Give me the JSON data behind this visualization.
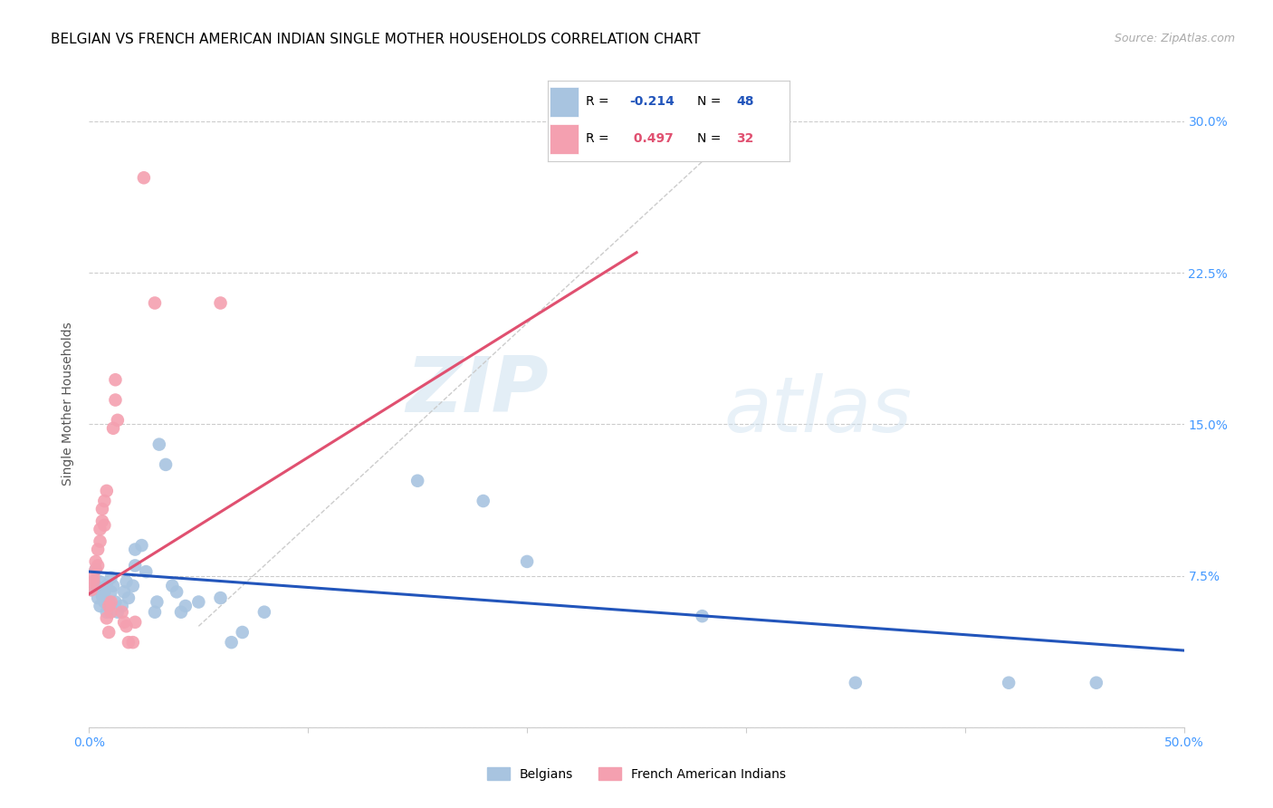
{
  "title": "BELGIAN VS FRENCH AMERICAN INDIAN SINGLE MOTHER HOUSEHOLDS CORRELATION CHART",
  "source": "Source: ZipAtlas.com",
  "ylabel": "Single Mother Households",
  "xlim": [
    0.0,
    0.5
  ],
  "ylim": [
    0.0,
    0.32
  ],
  "xticks": [
    0.0,
    0.1,
    0.2,
    0.3,
    0.4,
    0.5
  ],
  "xticklabels": [
    "0.0%",
    "",
    "",
    "",
    "",
    "50.0%"
  ],
  "yticks": [
    0.0,
    0.075,
    0.15,
    0.225,
    0.3
  ],
  "yticklabels_right": [
    "",
    "7.5%",
    "15.0%",
    "22.5%",
    "30.0%"
  ],
  "watermark_zip": "ZIP",
  "watermark_atlas": "atlas",
  "belgian_color": "#a8c4e0",
  "french_color": "#f4a0b0",
  "belgian_line_color": "#2255bb",
  "french_line_color": "#e05070",
  "diag_line_color": "#cccccc",
  "legend_belgian_r": "-0.214",
  "legend_belgian_n": "48",
  "legend_french_r": "0.497",
  "legend_french_n": "32",
  "blue_line_x0": 0.0,
  "blue_line_y0": 0.077,
  "blue_line_x1": 0.5,
  "blue_line_y1": 0.038,
  "pink_line_x0": 0.0,
  "pink_line_y0": 0.066,
  "pink_line_x1": 0.25,
  "pink_line_y1": 0.235,
  "belgian_points": [
    [
      0.001,
      0.068
    ],
    [
      0.002,
      0.072
    ],
    [
      0.003,
      0.07
    ],
    [
      0.003,
      0.078
    ],
    [
      0.004,
      0.064
    ],
    [
      0.004,
      0.069
    ],
    [
      0.005,
      0.06
    ],
    [
      0.005,
      0.072
    ],
    [
      0.006,
      0.065
    ],
    [
      0.007,
      0.062
    ],
    [
      0.007,
      0.067
    ],
    [
      0.008,
      0.07
    ],
    [
      0.008,
      0.057
    ],
    [
      0.009,
      0.062
    ],
    [
      0.01,
      0.074
    ],
    [
      0.01,
      0.067
    ],
    [
      0.011,
      0.07
    ],
    [
      0.012,
      0.062
    ],
    [
      0.013,
      0.057
    ],
    [
      0.015,
      0.06
    ],
    [
      0.016,
      0.067
    ],
    [
      0.017,
      0.072
    ],
    [
      0.018,
      0.064
    ],
    [
      0.02,
      0.07
    ],
    [
      0.021,
      0.08
    ],
    [
      0.021,
      0.088
    ],
    [
      0.024,
      0.09
    ],
    [
      0.026,
      0.077
    ],
    [
      0.03,
      0.057
    ],
    [
      0.031,
      0.062
    ],
    [
      0.032,
      0.14
    ],
    [
      0.035,
      0.13
    ],
    [
      0.038,
      0.07
    ],
    [
      0.04,
      0.067
    ],
    [
      0.042,
      0.057
    ],
    [
      0.044,
      0.06
    ],
    [
      0.05,
      0.062
    ],
    [
      0.06,
      0.064
    ],
    [
      0.065,
      0.042
    ],
    [
      0.07,
      0.047
    ],
    [
      0.08,
      0.057
    ],
    [
      0.15,
      0.122
    ],
    [
      0.18,
      0.112
    ],
    [
      0.2,
      0.082
    ],
    [
      0.28,
      0.055
    ],
    [
      0.35,
      0.022
    ],
    [
      0.42,
      0.022
    ],
    [
      0.46,
      0.022
    ]
  ],
  "french_points": [
    [
      0.001,
      0.068
    ],
    [
      0.002,
      0.072
    ],
    [
      0.002,
      0.074
    ],
    [
      0.003,
      0.078
    ],
    [
      0.003,
      0.082
    ],
    [
      0.004,
      0.088
    ],
    [
      0.004,
      0.08
    ],
    [
      0.005,
      0.098
    ],
    [
      0.005,
      0.092
    ],
    [
      0.006,
      0.102
    ],
    [
      0.006,
      0.108
    ],
    [
      0.007,
      0.112
    ],
    [
      0.007,
      0.1
    ],
    [
      0.008,
      0.117
    ],
    [
      0.008,
      0.054
    ],
    [
      0.009,
      0.06
    ],
    [
      0.009,
      0.047
    ],
    [
      0.01,
      0.062
    ],
    [
      0.01,
      0.057
    ],
    [
      0.011,
      0.148
    ],
    [
      0.012,
      0.162
    ],
    [
      0.012,
      0.172
    ],
    [
      0.013,
      0.152
    ],
    [
      0.015,
      0.057
    ],
    [
      0.016,
      0.052
    ],
    [
      0.017,
      0.05
    ],
    [
      0.018,
      0.042
    ],
    [
      0.02,
      0.042
    ],
    [
      0.021,
      0.052
    ],
    [
      0.025,
      0.272
    ],
    [
      0.03,
      0.21
    ],
    [
      0.06,
      0.21
    ]
  ],
  "title_fontsize": 11,
  "axis_label_fontsize": 10,
  "tick_fontsize": 10,
  "source_fontsize": 9,
  "legend_r_color": "#2255bb",
  "legend_n_color": "#2255bb",
  "legend_pink_r_color": "#e05070",
  "legend_pink_n_color": "#e05070"
}
